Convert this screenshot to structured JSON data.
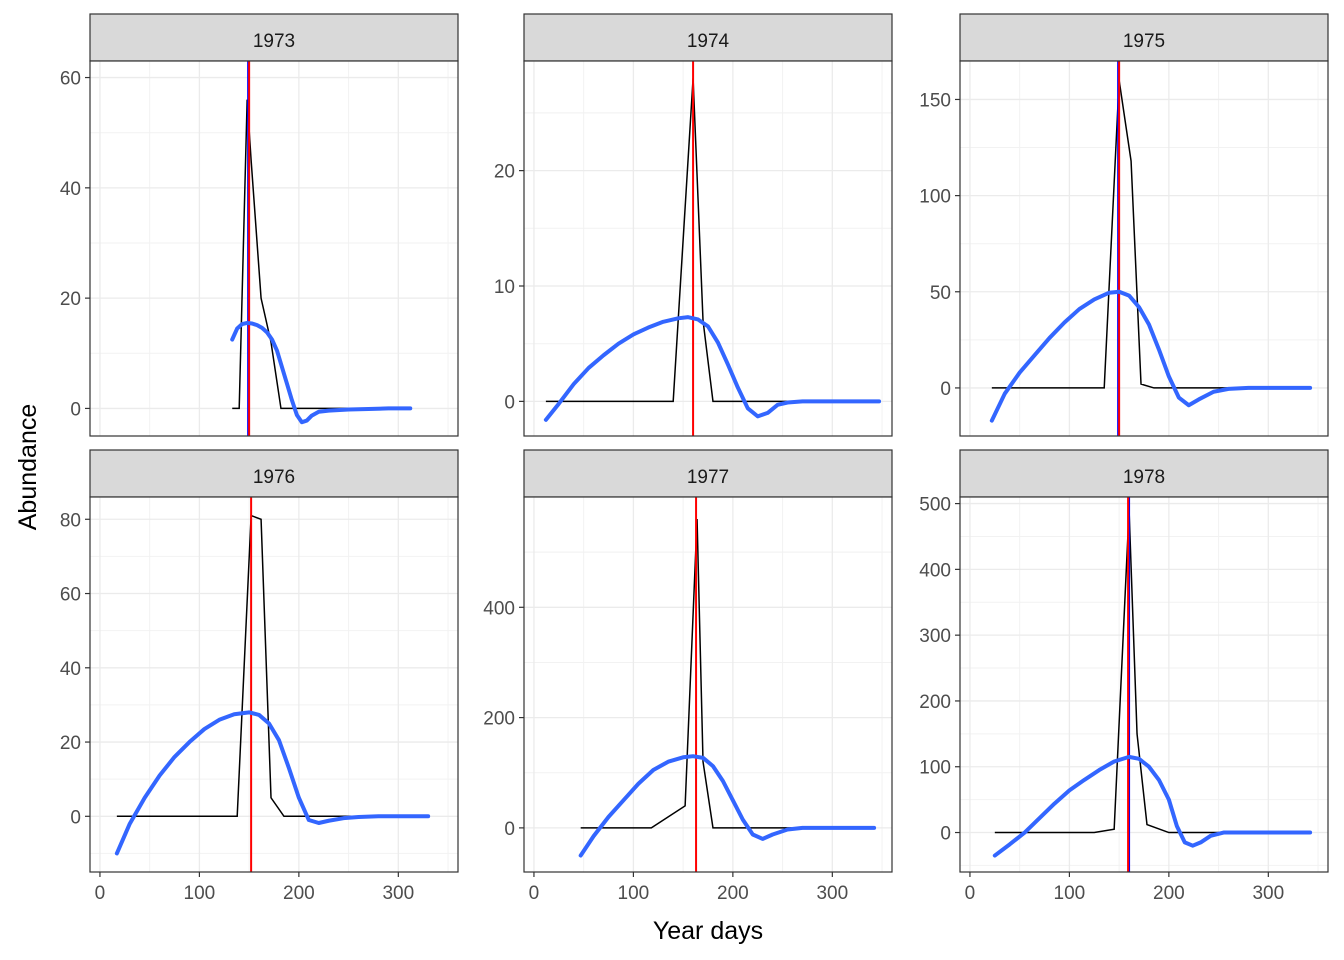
{
  "axes": {
    "xlabel": "Year days",
    "ylabel": "Abundance"
  },
  "colors": {
    "observed": "#000000",
    "smooth": "#3366FF",
    "red_line": "#FF0000",
    "blue_line": "#0000FF"
  },
  "chart_data": [
    {
      "type": "line",
      "title": "1973",
      "xlim": [
        -10,
        360
      ],
      "ylim": [
        -5,
        63
      ],
      "yticks": [
        0,
        20,
        40,
        60
      ],
      "xticks": [
        0,
        100,
        200,
        300
      ],
      "red_vline": 150,
      "blue_vline": 149,
      "series": [
        {
          "x": [
            133,
            140,
            148,
            152,
            162,
            172,
            182,
            195,
            210,
            230,
            260,
            290,
            312
          ],
          "y": [
            0,
            0,
            56,
            45,
            20,
            12,
            0,
            0,
            0,
            0,
            0,
            0,
            0
          ]
        },
        {
          "x": [
            133,
            138,
            143,
            148,
            153,
            158,
            163,
            168,
            173,
            178,
            183,
            188,
            193,
            198,
            203,
            208,
            213,
            220,
            230,
            250,
            270,
            290,
            312
          ],
          "y": [
            12.5,
            14.5,
            15.3,
            15.5,
            15.4,
            15.1,
            14.6,
            13.8,
            12.5,
            10.5,
            7.5,
            4.5,
            1.5,
            -1.2,
            -2.5,
            -2.2,
            -1.3,
            -0.6,
            -0.4,
            -0.2,
            -0.1,
            0,
            0
          ]
        }
      ]
    },
    {
      "type": "line",
      "title": "1974",
      "xlim": [
        -10,
        360
      ],
      "ylim": [
        -3,
        29.5
      ],
      "yticks": [
        0,
        10,
        20
      ],
      "xticks": [
        0,
        100,
        200,
        300
      ],
      "red_vline": 160,
      "blue_vline": null,
      "series": [
        {
          "x": [
            12,
            80,
            140,
            160,
            170,
            180,
            200,
            250,
            300,
            347
          ],
          "y": [
            0,
            0,
            0,
            28,
            7,
            0,
            0,
            0,
            0,
            0
          ]
        },
        {
          "x": [
            12,
            25,
            40,
            55,
            70,
            85,
            100,
            115,
            130,
            145,
            155,
            165,
            175,
            185,
            195,
            205,
            215,
            225,
            235,
            245,
            255,
            270,
            300,
            347
          ],
          "y": [
            -1.6,
            -0.2,
            1.5,
            2.9,
            4.0,
            5.0,
            5.8,
            6.4,
            6.9,
            7.2,
            7.3,
            7.1,
            6.5,
            5.1,
            3.2,
            1.2,
            -0.6,
            -1.3,
            -1.0,
            -0.3,
            -0.1,
            0,
            0,
            0
          ]
        }
      ]
    },
    {
      "type": "line",
      "title": "1975",
      "xlim": [
        -10,
        360
      ],
      "ylim": [
        -25,
        170
      ],
      "yticks": [
        0,
        50,
        100,
        150
      ],
      "xticks": [
        0,
        100,
        200,
        300
      ],
      "red_vline": 150,
      "blue_vline": 149,
      "series": [
        {
          "x": [
            22,
            60,
            110,
            135,
            150,
            162,
            172,
            185,
            220,
            260,
            300,
            342
          ],
          "y": [
            0,
            0,
            0,
            0,
            160,
            118,
            2,
            0,
            0,
            0,
            0,
            0
          ]
        },
        {
          "x": [
            22,
            35,
            50,
            65,
            80,
            95,
            110,
            125,
            140,
            150,
            160,
            170,
            180,
            190,
            200,
            210,
            220,
            230,
            245,
            260,
            280,
            300,
            342
          ],
          "y": [
            -17,
            -3,
            8,
            17,
            26,
            34,
            41,
            46,
            49.5,
            50,
            48,
            42,
            33,
            20,
            6,
            -5,
            -9,
            -6,
            -2,
            -0.5,
            0,
            0,
            0
          ]
        }
      ]
    },
    {
      "type": "line",
      "title": "1976",
      "xlim": [
        -10,
        360
      ],
      "ylim": [
        -15,
        86
      ],
      "yticks": [
        0,
        20,
        40,
        60,
        80
      ],
      "xticks": [
        0,
        100,
        200,
        300
      ],
      "red_vline": 152,
      "blue_vline": null,
      "series": [
        {
          "x": [
            17,
            60,
            100,
            138,
            152,
            162,
            172,
            185,
            220,
            260,
            300,
            330
          ],
          "y": [
            0,
            0,
            0,
            0,
            81,
            80,
            5,
            0,
            0,
            0,
            0,
            0
          ]
        },
        {
          "x": [
            17,
            30,
            45,
            60,
            75,
            90,
            105,
            120,
            135,
            150,
            160,
            170,
            180,
            190,
            200,
            210,
            220,
            230,
            245,
            260,
            280,
            300,
            330
          ],
          "y": [
            -10,
            -2,
            5,
            11,
            16,
            20,
            23.5,
            26,
            27.5,
            28,
            27.3,
            25,
            20.5,
            13,
            5,
            -1,
            -1.8,
            -1.2,
            -0.5,
            -0.2,
            0,
            0,
            0
          ]
        }
      ]
    },
    {
      "type": "line",
      "title": "1977",
      "xlim": [
        -10,
        360
      ],
      "ylim": [
        -80,
        600
      ],
      "yticks": [
        0,
        200,
        400
      ],
      "xticks": [
        0,
        100,
        200,
        300
      ],
      "red_vline": 163,
      "blue_vline": null,
      "series": [
        {
          "x": [
            47,
            90,
            118,
            152,
            164,
            170,
            180,
            220,
            260,
            300,
            342
          ],
          "y": [
            0,
            0,
            0,
            40,
            560,
            120,
            0,
            0,
            0,
            0,
            0
          ]
        },
        {
          "x": [
            47,
            60,
            75,
            90,
            105,
            120,
            135,
            150,
            160,
            170,
            180,
            190,
            200,
            210,
            220,
            230,
            240,
            255,
            270,
            300,
            342
          ],
          "y": [
            -50,
            -15,
            20,
            50,
            80,
            105,
            120,
            128,
            130,
            127,
            112,
            85,
            50,
            15,
            -12,
            -20,
            -12,
            -3,
            0,
            0,
            0
          ]
        }
      ]
    },
    {
      "type": "line",
      "title": "1978",
      "xlim": [
        -10,
        360
      ],
      "ylim": [
        -60,
        510
      ],
      "yticks": [
        0,
        100,
        200,
        300,
        400,
        500
      ],
      "xticks": [
        0,
        100,
        200,
        300
      ],
      "red_vline": 159,
      "blue_vline": 160,
      "series": [
        {
          "x": [
            25,
            80,
            125,
            145,
            160,
            168,
            178,
            200,
            240,
            280,
            342
          ],
          "y": [
            0,
            0,
            0,
            5,
            490,
            150,
            12,
            0,
            0,
            0,
            0
          ]
        },
        {
          "x": [
            25,
            40,
            55,
            70,
            85,
            100,
            115,
            130,
            145,
            160,
            170,
            180,
            190,
            200,
            208,
            216,
            224,
            232,
            242,
            255,
            270,
            300,
            342
          ],
          "y": [
            -35,
            -18,
            0,
            22,
            44,
            64,
            80,
            95,
            108,
            115,
            112,
            100,
            80,
            50,
            10,
            -15,
            -20,
            -15,
            -5,
            0,
            0,
            0,
            0
          ]
        }
      ]
    }
  ]
}
